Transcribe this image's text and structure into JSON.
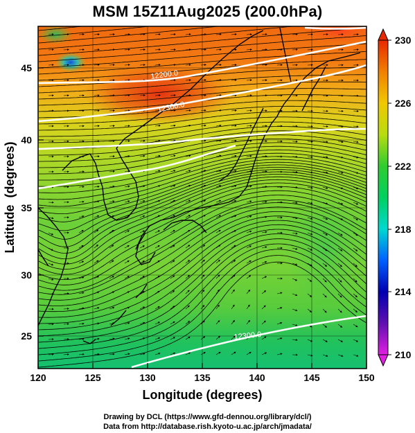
{
  "title": "MSM 15Z11Aug2025 (200.0hPa)",
  "x_axis": {
    "label": "Longitude (degrees)",
    "ticks": [
      "120",
      "125",
      "130",
      "135",
      "140",
      "145",
      "150"
    ]
  },
  "y_axis": {
    "label": "Latitude  (degrees)",
    "ticks": [
      "25",
      "30",
      "35",
      "40",
      "45"
    ]
  },
  "colorbar": {
    "ticks": [
      "230",
      "226",
      "222",
      "218",
      "214",
      "210"
    ]
  },
  "contour_labels": [
    "12300.0",
    "12200.0",
    "12300.0"
  ],
  "footer": {
    "line1": "Drawing by DCL (https://www.gfd-dennou.org/library/dcl/)",
    "line2": "Data from http://database.rish.kyoto-u.ac.jp/arch/jmadata/"
  },
  "chart_data": {
    "type": "map",
    "variable": "temperature (K) at 200.0 hPa with geopotential height contours and wind streamlines",
    "lon_range": [
      120,
      150
    ],
    "lat_range": [
      22.5,
      48
    ],
    "color_range": [
      210,
      230
    ],
    "colormap": [
      "#e020e0",
      "#0000b0",
      "#0060ff",
      "#00d8d0",
      "#00d060",
      "#40d030",
      "#d8e000",
      "#f0a000",
      "#e82800"
    ],
    "height_contours_m": [
      12200,
      12300
    ],
    "x_ticks": [
      120,
      125,
      130,
      135,
      140,
      145,
      150
    ],
    "y_ticks": [
      25,
      30,
      35,
      40,
      45
    ]
  }
}
